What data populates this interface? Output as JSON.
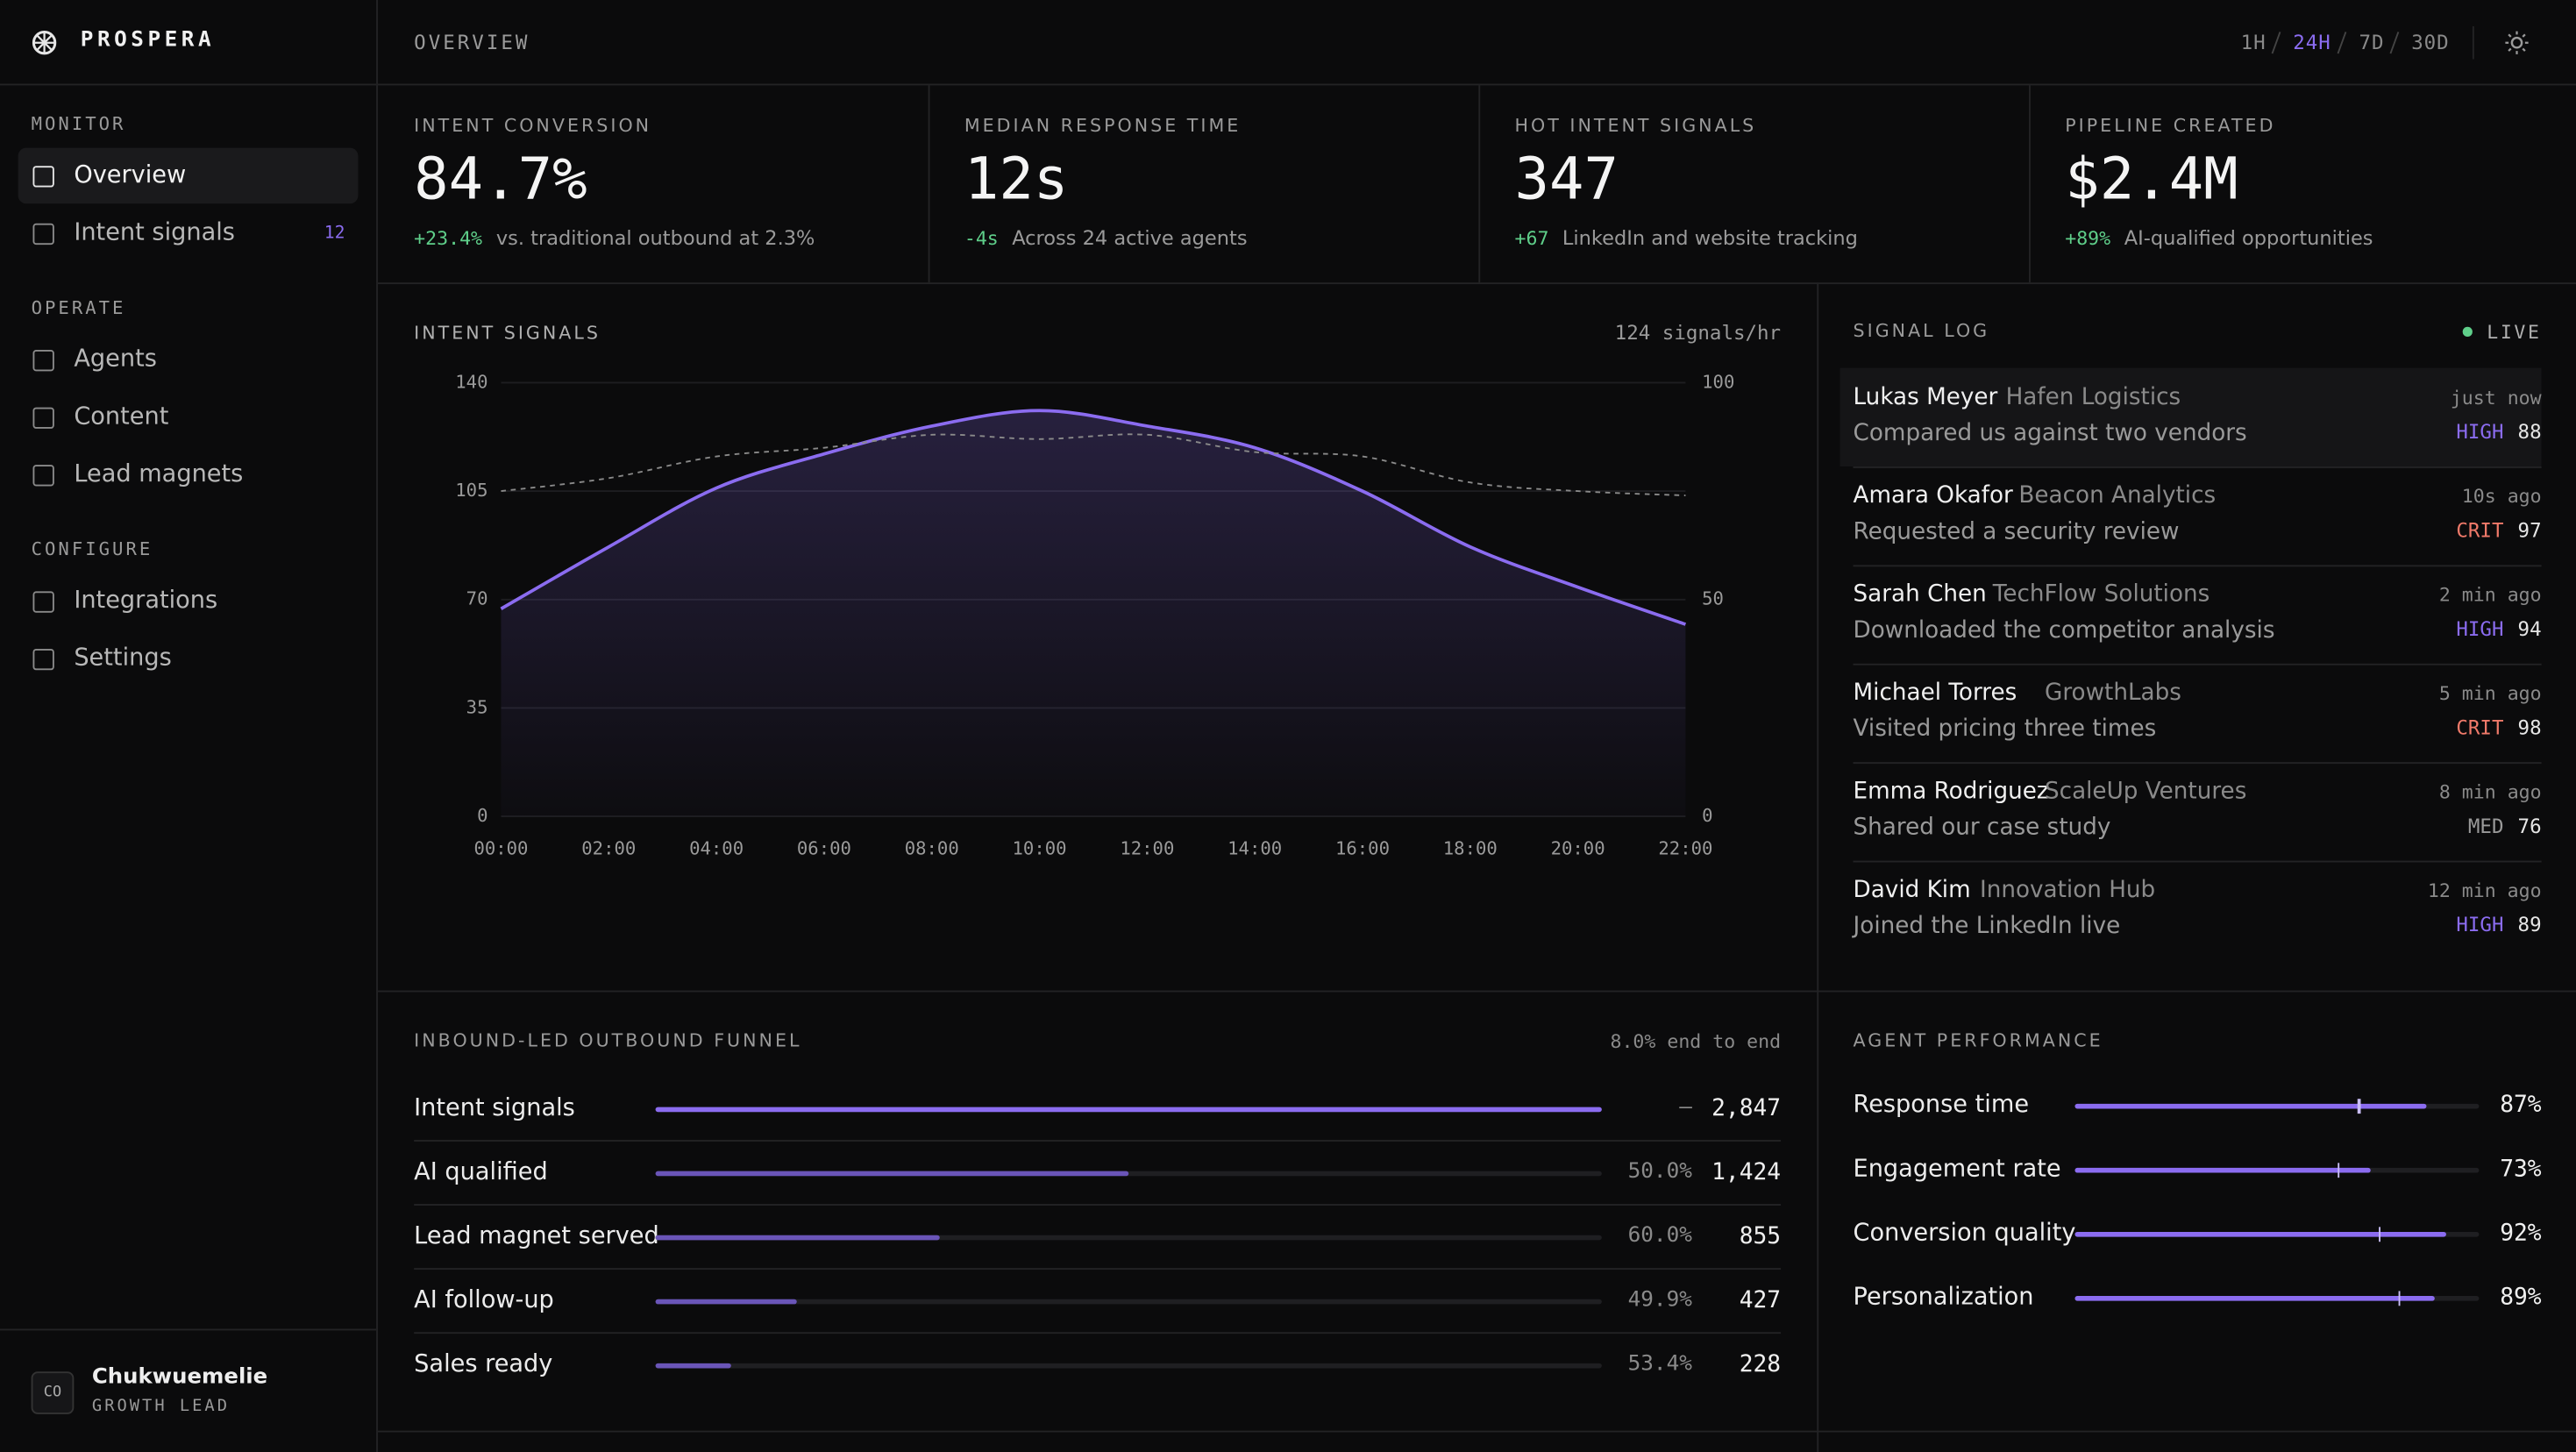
{
  "sidebar": {
    "brand": "PROSPERA",
    "sections": [
      {
        "title": "MONITOR",
        "items": [
          {
            "label": "Overview",
            "active": true
          },
          {
            "label": "Intent signals",
            "badge": "12"
          }
        ]
      },
      {
        "title": "OPERATE",
        "items": [
          {
            "label": "Agents"
          },
          {
            "label": "Content"
          },
          {
            "label": "Lead magnets"
          }
        ]
      },
      {
        "title": "CONFIGURE",
        "items": [
          {
            "label": "Integrations"
          },
          {
            "label": "Settings"
          }
        ]
      }
    ],
    "user": {
      "initials": "CO",
      "name": "Chukwuemelie",
      "role": "GROWTH LEAD"
    }
  },
  "header": {
    "title": "OVERVIEW",
    "ranges": [
      "1H",
      "24H",
      "7D",
      "30D"
    ],
    "active_range": 1
  },
  "kpis": [
    {
      "label": "INTENT CONVERSION",
      "value": "84.7%",
      "delta": "+23.4%",
      "note": "vs. traditional outbound at 2.3%"
    },
    {
      "label": "MEDIAN RESPONSE TIME",
      "value": "12s",
      "delta": "-4s",
      "note": "Across 24 active agents"
    },
    {
      "label": "HOT INTENT SIGNALS",
      "value": "347",
      "delta": "+67",
      "note": "LinkedIn and website tracking"
    },
    {
      "label": "PIPELINE CREATED",
      "value": "$2.4M",
      "delta": "+89%",
      "note": "AI-qualified opportunities"
    }
  ],
  "chart_data": {
    "type": "line",
    "title": "INTENT SIGNALS",
    "subtitle": "124 signals/hr",
    "categories": [
      "00:00",
      "02:00",
      "04:00",
      "06:00",
      "08:00",
      "10:00",
      "12:00",
      "14:00",
      "16:00",
      "18:00",
      "20:00",
      "22:00"
    ],
    "series": [
      {
        "color": "#8b6cf0",
        "values": [
          67,
          87,
          106,
          117,
          126,
          131,
          126,
          119,
          105,
          87,
          74,
          62
        ],
        "area": true
      },
      {
        "color": "#8a8a8a",
        "values": [
          75,
          78,
          83,
          85,
          88,
          87,
          88,
          84,
          83,
          77,
          75,
          74
        ],
        "axis": "y2",
        "dashed": true
      }
    ],
    "ylim": [
      0,
      140
    ],
    "yticks": [
      0,
      35,
      70,
      105,
      140
    ],
    "y2lim": [
      0,
      100
    ],
    "y2ticks": [
      0,
      50,
      100
    ],
    "grid": true
  },
  "signal_log": {
    "title": "SIGNAL LOG",
    "status": "LIVE",
    "entries": [
      {
        "name": "Lukas Meyer",
        "company": "Hafen Logistics",
        "action": "Compared us against two vendors",
        "time": "just now",
        "level": "HIGH",
        "score": 88
      },
      {
        "name": "Amara Okafor",
        "company": "Beacon Analytics",
        "action": "Requested a security review",
        "time": "10s ago",
        "level": "CRIT",
        "score": 97
      },
      {
        "name": "Sarah Chen",
        "company": "TechFlow Solutions",
        "action": "Downloaded the competitor analysis",
        "time": "2 min ago",
        "level": "HIGH",
        "score": 94
      },
      {
        "name": "Michael Torres",
        "company": "GrowthLabs",
        "action": "Visited pricing three times",
        "time": "5 min ago",
        "level": "CRIT",
        "score": 98
      },
      {
        "name": "Emma Rodriguez",
        "company": "ScaleUp Ventures",
        "action": "Shared our case study",
        "time": "8 min ago",
        "level": "MED",
        "score": 76
      },
      {
        "name": "David Kim",
        "company": "Innovation Hub",
        "action": "Joined the LinkedIn live",
        "time": "12 min ago",
        "level": "HIGH",
        "score": 89
      }
    ]
  },
  "funnel": {
    "title": "INBOUND-LED OUTBOUND FUNNEL",
    "summary": "8.0% end to end",
    "stages": [
      {
        "name": "Intent signals",
        "rate": "—",
        "count": {
          "value": 2847,
          "label": "2,847"
        }
      },
      {
        "name": "AI qualified",
        "rate": "50.0%",
        "count": {
          "value": 1424,
          "label": "1,424"
        }
      },
      {
        "name": "Lead magnet served",
        "rate": "60.0%",
        "count": 855
      },
      {
        "name": "AI follow-up",
        "rate": "49.9%",
        "count": 427
      },
      {
        "name": "Sales ready",
        "rate": "53.4%",
        "count": 228
      }
    ]
  },
  "agent_performance": {
    "title": "AGENT PERFORMANCE",
    "metrics": [
      {
        "name": "Response time",
        "score": {
          "value": 87,
          "label": "87%"
        },
        "target": 70
      },
      {
        "name": "Engagement rate",
        "score": {
          "value": 73,
          "label": "73%"
        },
        "target": 65
      },
      {
        "name": "Conversion quality",
        "score": {
          "value": 92,
          "label": "92%"
        },
        "target": 75
      },
      {
        "name": "Personalization",
        "score": {
          "value": 89,
          "label": "89%"
        },
        "target": 80
      }
    ]
  }
}
